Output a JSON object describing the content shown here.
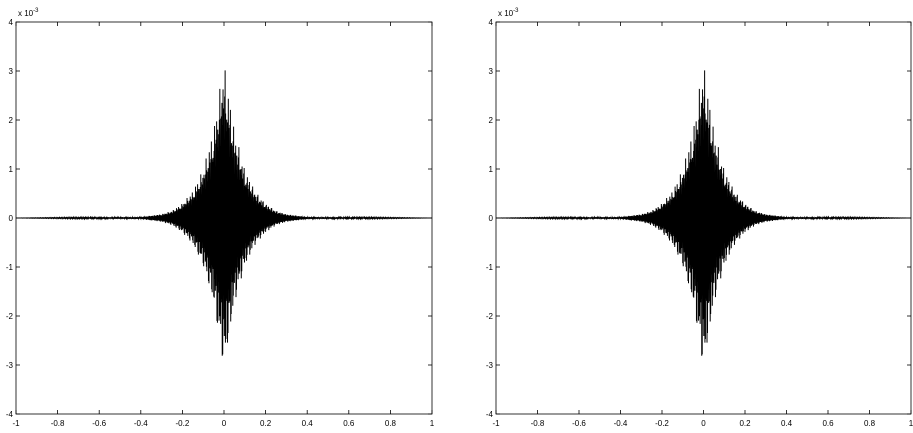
{
  "chart_data": [
    {
      "type": "line",
      "title": "",
      "xlabel": "",
      "ylabel": "",
      "xlim": [
        -1,
        1
      ],
      "ylim": [
        -4,
        4
      ],
      "y_scale_factor": "x 10^-3",
      "y_exponent_base": "x 10",
      "y_exponent_power": "-3",
      "x_ticks": [
        -1,
        -0.8,
        -0.6,
        -0.4,
        -0.2,
        0,
        0.2,
        0.4,
        0.6,
        0.8,
        1
      ],
      "x_tick_labels": [
        "-1",
        "-0.8",
        "-0.6",
        "-0.4",
        "-0.2",
        "0",
        "0.2",
        "0.4",
        "0.6",
        "0.8",
        "1"
      ],
      "y_ticks": [
        -4,
        -3,
        -2,
        -1,
        0,
        1,
        2,
        3,
        4
      ],
      "y_tick_labels": [
        "-4",
        "-3",
        "-2",
        "-1",
        "0",
        "1",
        "2",
        "3",
        "4"
      ],
      "grid": false,
      "line_color": "#000000",
      "series": [
        {
          "description_of_shape": "rapidly oscillating wave packet centered at x=0, envelope amplitude in units of 1e-3",
          "envelope_x": [
            -1,
            -0.4,
            -0.3,
            -0.25,
            -0.2,
            -0.15,
            -0.1,
            -0.05,
            0,
            0.05,
            0.1,
            0.15,
            0.2,
            0.25,
            0.3,
            0.4,
            1
          ],
          "envelope_y": [
            0,
            0.02,
            0.08,
            0.15,
            0.3,
            0.55,
            1.0,
            1.8,
            3.2,
            1.8,
            1.0,
            0.55,
            0.3,
            0.15,
            0.08,
            0.02,
            0
          ]
        }
      ]
    },
    {
      "type": "line",
      "title": "",
      "xlabel": "",
      "ylabel": "",
      "xlim": [
        -1,
        1
      ],
      "ylim": [
        -4,
        4
      ],
      "y_scale_factor": "x 10^-3",
      "y_exponent_base": "x 10",
      "y_exponent_power": "-3",
      "x_ticks": [
        -1,
        -0.8,
        -0.6,
        -0.4,
        -0.2,
        0,
        0.2,
        0.4,
        0.6,
        0.8,
        1
      ],
      "x_tick_labels": [
        "-1",
        "-0.8",
        "-0.6",
        "-0.4",
        "-0.2",
        "0",
        "0.2",
        "0.4",
        "0.6",
        "0.8",
        "1"
      ],
      "y_ticks": [
        -4,
        -3,
        -2,
        -1,
        0,
        1,
        2,
        3,
        4
      ],
      "y_tick_labels": [
        "-4",
        "-3",
        "-2",
        "-1",
        "0",
        "1",
        "2",
        "3",
        "4"
      ],
      "grid": false,
      "line_color": "#000000",
      "series": [
        {
          "description_of_shape": "rapidly oscillating wave packet centered at x=0, envelope amplitude in units of 1e-3",
          "envelope_x": [
            -1,
            -0.4,
            -0.3,
            -0.25,
            -0.2,
            -0.15,
            -0.1,
            -0.05,
            0,
            0.05,
            0.1,
            0.15,
            0.2,
            0.25,
            0.3,
            0.4,
            1
          ],
          "envelope_y": [
            0,
            0.02,
            0.08,
            0.15,
            0.3,
            0.55,
            1.0,
            1.8,
            3.2,
            1.8,
            1.0,
            0.55,
            0.3,
            0.15,
            0.08,
            0.02,
            0
          ]
        }
      ]
    }
  ]
}
